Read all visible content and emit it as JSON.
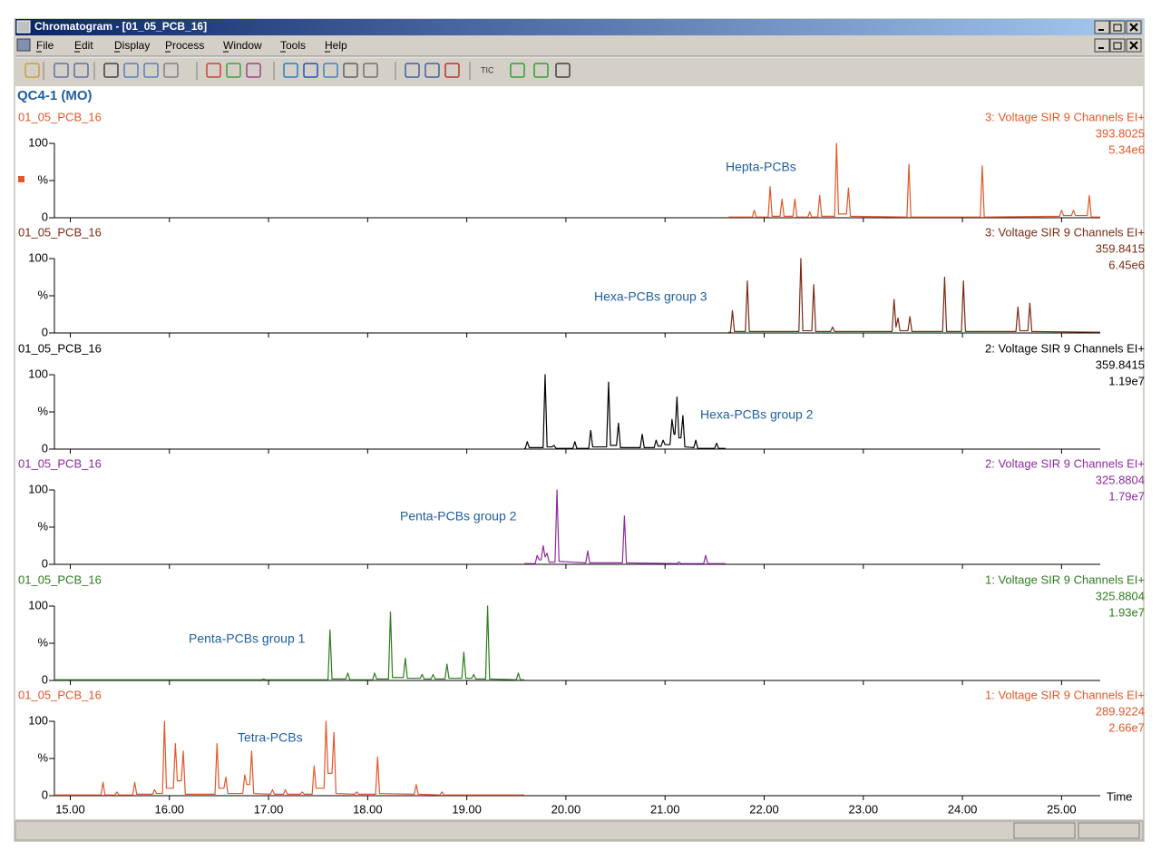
{
  "window": {
    "title": "Chromatogram - [01_05_PCB_16]",
    "menu": [
      "File",
      "Edit",
      "Display",
      "Process",
      "Window",
      "Tools",
      "Help"
    ],
    "toolbar_text": "TIC",
    "sample": "QC4-1 (MO)"
  },
  "chart_data": [
    {
      "type": "line",
      "title": "01_05_PCB_16",
      "function": "3: Voltage SIR 9 Channels EI+",
      "mass": "393.8025",
      "intensity": "5.34e6",
      "annotation": "Hepta-PCBs",
      "color": "#e5562a",
      "xlim": [
        14.84,
        25.39
      ],
      "ylim": [
        0,
        100
      ],
      "yticks": [
        100,
        {
          "value": 50,
          "label": "%"
        },
        0
      ],
      "x": [
        21.64,
        21.88,
        21.9,
        21.92,
        22.04,
        22.06,
        22.08,
        22.16,
        22.18,
        22.2,
        22.29,
        22.31,
        22.33,
        22.44,
        22.46,
        22.48,
        22.54,
        22.56,
        22.58,
        22.71,
        22.73,
        22.75,
        22.83,
        22.85,
        22.87,
        23.44,
        23.46,
        23.48,
        24.18,
        24.2,
        24.22,
        24.98,
        25.0,
        25.02,
        25.1,
        25.12,
        25.14,
        25.26,
        25.28,
        25.3,
        25.39
      ],
      "values": [
        1,
        1,
        10,
        1,
        1,
        42,
        2,
        2,
        25,
        2,
        2,
        25,
        1,
        1,
        8,
        1,
        1,
        30,
        2,
        2,
        100,
        5,
        5,
        40,
        2,
        1,
        72,
        1,
        1,
        70,
        1,
        2,
        10,
        3,
        3,
        10,
        3,
        3,
        30,
        1,
        1
      ]
    },
    {
      "type": "line",
      "title": "01_05_PCB_16",
      "function": "3: Voltage SIR 9 Channels EI+",
      "mass": "359.8415",
      "intensity": "6.45e6",
      "annotation": "Hexa-PCBs group 3",
      "color": "#7a2a14",
      "xlim": [
        14.84,
        25.39
      ],
      "ylim": [
        0,
        100
      ],
      "yticks": [
        100,
        {
          "value": 50,
          "label": "%"
        },
        0
      ],
      "x": [
        21.64,
        21.66,
        21.68,
        21.7,
        21.81,
        21.83,
        21.85,
        22.35,
        22.37,
        22.39,
        22.48,
        22.5,
        22.52,
        22.67,
        22.69,
        22.71,
        23.29,
        23.31,
        23.33,
        23.33,
        23.35,
        23.37,
        23.45,
        23.47,
        23.49,
        23.8,
        23.82,
        23.84,
        23.99,
        24.01,
        24.03,
        24.54,
        24.56,
        24.58,
        24.66,
        24.68,
        24.7,
        25.39
      ],
      "values": [
        1,
        1,
        30,
        2,
        2,
        70,
        2,
        2,
        100,
        3,
        3,
        65,
        2,
        2,
        8,
        2,
        2,
        45,
        8,
        8,
        20,
        3,
        3,
        22,
        2,
        2,
        75,
        2,
        2,
        70,
        2,
        2,
        35,
        3,
        3,
        40,
        2,
        1
      ]
    },
    {
      "type": "line",
      "title": "01_05_PCB_16",
      "function": "2: Voltage SIR 9 Channels EI+",
      "mass": "359.8415",
      "intensity": "1.19e7",
      "annotation": "Hexa-PCBs group 2",
      "color": "#000000",
      "xlim": [
        14.84,
        25.39
      ],
      "ylim": [
        0,
        100
      ],
      "yticks": [
        100,
        {
          "value": 50,
          "label": "%"
        },
        0
      ],
      "x": [
        19.58,
        19.59,
        19.61,
        19.63,
        19.77,
        19.79,
        19.81,
        19.86,
        19.88,
        19.9,
        20.07,
        20.09,
        20.11,
        20.23,
        20.25,
        20.27,
        20.41,
        20.43,
        20.45,
        20.51,
        20.53,
        20.55,
        20.75,
        20.77,
        20.79,
        20.89,
        20.91,
        20.93,
        20.96,
        20.98,
        21.0,
        21.05,
        21.07,
        21.09,
        21.1,
        21.12,
        21.14,
        21.16,
        21.18,
        21.2,
        21.29,
        21.31,
        21.33,
        21.5,
        21.52,
        21.54,
        21.61
      ],
      "values": [
        1,
        1,
        10,
        2,
        2,
        100,
        3,
        3,
        5,
        1,
        1,
        10,
        1,
        1,
        25,
        3,
        3,
        90,
        5,
        5,
        35,
        2,
        2,
        20,
        2,
        2,
        12,
        4,
        4,
        12,
        6,
        6,
        40,
        20,
        20,
        70,
        15,
        15,
        45,
        3,
        2,
        12,
        1,
        1,
        8,
        1,
        1
      ]
    },
    {
      "type": "line",
      "title": "01_05_PCB_16",
      "function": "2: Voltage SIR 9 Channels EI+",
      "mass": "325.8804",
      "intensity": "1.79e7",
      "annotation": "Penta-PCBs group 2",
      "color": "#8e2aa0",
      "xlim": [
        14.84,
        25.39
      ],
      "ylim": [
        0,
        100
      ],
      "yticks": [
        100,
        {
          "value": 50,
          "label": "%"
        },
        0
      ],
      "x": [
        19.58,
        19.69,
        19.71,
        19.73,
        19.75,
        19.77,
        19.79,
        19.79,
        19.81,
        19.83,
        19.89,
        19.91,
        19.93,
        20.2,
        20.22,
        20.24,
        20.57,
        20.59,
        20.61,
        21.12,
        21.14,
        21.16,
        21.39,
        21.41,
        21.43,
        21.61
      ],
      "values": [
        1,
        1,
        12,
        6,
        6,
        25,
        10,
        10,
        15,
        3,
        3,
        100,
        4,
        2,
        18,
        2,
        2,
        65,
        2,
        1,
        3,
        1,
        1,
        12,
        1,
        1
      ]
    },
    {
      "type": "line",
      "title": "01_05_PCB_16",
      "function": "1: Voltage SIR 9 Channels EI+",
      "mass": "325.8804",
      "intensity": "1.93e7",
      "annotation": "Penta-PCBs group 1",
      "color": "#2e7d1e",
      "xlim": [
        14.84,
        25.39
      ],
      "ylim": [
        0,
        100
      ],
      "yticks": [
        100,
        {
          "value": 50,
          "label": "%"
        },
        0
      ],
      "x": [
        14.84,
        16.93,
        16.95,
        16.97,
        17.6,
        17.62,
        17.64,
        17.78,
        17.8,
        17.82,
        18.05,
        18.07,
        18.09,
        18.21,
        18.23,
        18.25,
        18.36,
        18.38,
        18.4,
        18.53,
        18.55,
        18.57,
        18.64,
        18.66,
        18.68,
        18.78,
        18.8,
        18.82,
        18.95,
        18.97,
        18.99,
        19.05,
        19.07,
        19.09,
        19.19,
        19.21,
        19.23,
        19.5,
        19.52,
        19.54,
        19.58
      ],
      "values": [
        1,
        1,
        2,
        1,
        1,
        68,
        2,
        2,
        10,
        1,
        1,
        10,
        2,
        2,
        92,
        4,
        4,
        30,
        3,
        3,
        8,
        2,
        2,
        8,
        2,
        2,
        22,
        3,
        3,
        38,
        3,
        3,
        8,
        2,
        2,
        100,
        2,
        1,
        10,
        1,
        1
      ]
    },
    {
      "type": "line",
      "title": "01_05_PCB_16",
      "function": "1: Voltage SIR 9 Channels EI+",
      "mass": "289.9224",
      "intensity": "2.66e7",
      "annotation": "Tetra-PCBs",
      "color": "#e5562a",
      "xlim": [
        14.84,
        25.39
      ],
      "ylim": [
        0,
        100
      ],
      "yticks": [
        100,
        {
          "value": 50,
          "label": "%"
        },
        0
      ],
      "xlabel": "Time",
      "xticks": [
        {
          "value": 15,
          "label": "15.00"
        },
        {
          "value": 16,
          "label": "16.00"
        },
        {
          "value": 17,
          "label": "17.00"
        },
        {
          "value": 18,
          "label": "18.00"
        },
        {
          "value": 19,
          "label": "19.00"
        },
        {
          "value": 20,
          "label": "20.00"
        },
        {
          "value": 21,
          "label": "21.00"
        },
        {
          "value": 22,
          "label": "22.00"
        },
        {
          "value": 23,
          "label": "23.00"
        },
        {
          "value": 24,
          "label": "24.00"
        },
        {
          "value": 25,
          "label": "25.00"
        }
      ],
      "x": [
        14.84,
        15.31,
        15.33,
        15.35,
        15.45,
        15.47,
        15.49,
        15.63,
        15.65,
        15.67,
        15.83,
        15.85,
        15.87,
        15.93,
        15.95,
        15.97,
        16.04,
        16.06,
        16.08,
        16.12,
        16.14,
        16.16,
        16.46,
        16.48,
        16.5,
        16.55,
        16.57,
        16.59,
        16.74,
        16.76,
        16.78,
        16.81,
        16.83,
        16.85,
        17.02,
        17.04,
        17.06,
        17.15,
        17.17,
        17.19,
        17.32,
        17.34,
        17.36,
        17.44,
        17.46,
        17.48,
        17.56,
        17.58,
        17.6,
        17.64,
        17.66,
        17.68,
        17.87,
        17.89,
        17.91,
        18.08,
        18.1,
        18.12,
        18.47,
        18.49,
        18.51,
        18.73,
        18.75,
        18.77,
        19.58
      ],
      "values": [
        1,
        1,
        18,
        1,
        1,
        5,
        1,
        1,
        18,
        2,
        2,
        8,
        3,
        3,
        100,
        10,
        10,
        70,
        20,
        20,
        60,
        2,
        2,
        70,
        10,
        10,
        25,
        3,
        3,
        28,
        15,
        15,
        60,
        3,
        2,
        8,
        2,
        2,
        8,
        2,
        2,
        5,
        2,
        2,
        40,
        10,
        10,
        100,
        30,
        30,
        85,
        3,
        2,
        5,
        2,
        2,
        52,
        3,
        2,
        15,
        2,
        1,
        5,
        1,
        1
      ]
    }
  ]
}
